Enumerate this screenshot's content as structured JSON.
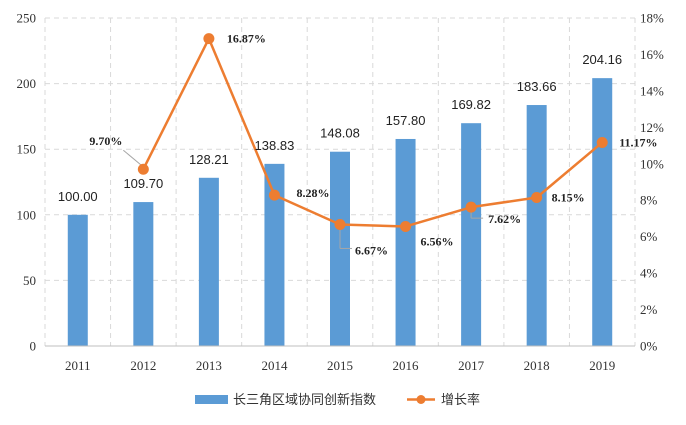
{
  "chart_data": {
    "type": "bar+line",
    "categories": [
      "2011",
      "2012",
      "2013",
      "2014",
      "2015",
      "2016",
      "2017",
      "2018",
      "2019"
    ],
    "series": [
      {
        "name": "长三角区域协同创新指数",
        "type": "bar",
        "axis": "left",
        "color": "#5b9bd5",
        "values": [
          100.0,
          109.7,
          128.21,
          138.83,
          148.08,
          157.8,
          169.82,
          183.66,
          204.16
        ],
        "labels": [
          "100.00",
          "109.70",
          "128.21",
          "138.83",
          "148.08",
          "157.80",
          "169.82",
          "183.66",
          "204.16"
        ]
      },
      {
        "name": "增长率",
        "type": "line",
        "axis": "right",
        "color": "#ed7d31",
        "values": [
          null,
          9.7,
          16.87,
          8.28,
          6.67,
          6.56,
          7.62,
          8.15,
          11.17
        ],
        "labels": [
          "",
          "9.70%",
          "16.87%",
          "8.28%",
          "6.67%",
          "6.56%",
          "7.62%",
          "8.15%",
          "11.17%"
        ]
      }
    ],
    "y_left": {
      "ylim": [
        0,
        250
      ],
      "ticks": [
        "0",
        "50",
        "100",
        "150",
        "200",
        "250"
      ]
    },
    "y_right": {
      "ylim": [
        0,
        18
      ],
      "ticks": [
        "0%",
        "2%",
        "4%",
        "6%",
        "8%",
        "10%",
        "12%",
        "14%",
        "16%",
        "18%"
      ]
    },
    "grid": true,
    "legend": "bottom"
  }
}
